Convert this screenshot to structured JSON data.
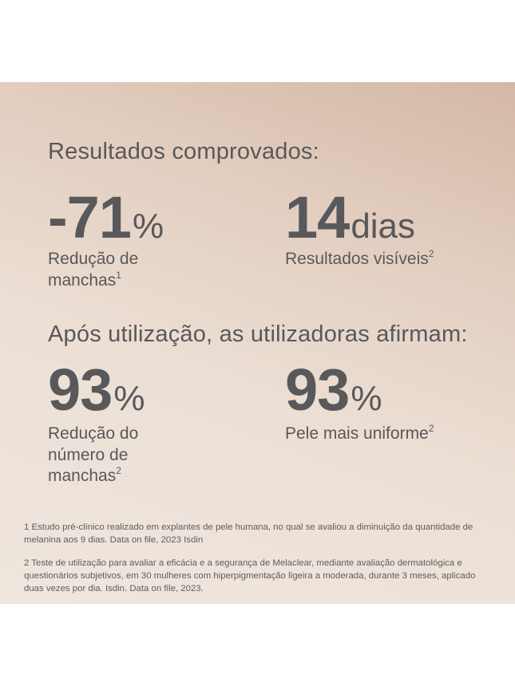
{
  "heading_1": "Resultados comprovados:",
  "stats_1": [
    {
      "number": "-71",
      "unit": "%",
      "label_lines": [
        "Redução de",
        "manchas"
      ],
      "note": "1"
    },
    {
      "number": "14",
      "unit": "dias",
      "label_lines": [
        "Resultados visíveis"
      ],
      "note": "2"
    }
  ],
  "heading_2": "Após utilização, as utilizadoras afirmam:",
  "stats_2": [
    {
      "number": "93",
      "unit": "%",
      "label_lines": [
        "Redução do",
        "número de",
        "manchas"
      ],
      "note": "2"
    },
    {
      "number": "93",
      "unit": "%",
      "label_lines": [
        "Pele mais uniforme"
      ],
      "note": "2"
    }
  ],
  "footnotes": [
    "1  Estudo pré-clínico realizado em explantes de pele humana, no qual se avaliou a diminuição da quantidade de melanina aos 9 dias. Data on file, 2023 Isdin",
    "2 Teste de utilização para avaliar a eficácia e a segurança de Melaclear, mediante avaliação dermatológica e questionários subjetivos, em 30 mulheres com hiperpigmentação ligeira a moderada, durante 3 meses, aplicado duas vezes por dia. Isdin. Data on file, 2023."
  ]
}
